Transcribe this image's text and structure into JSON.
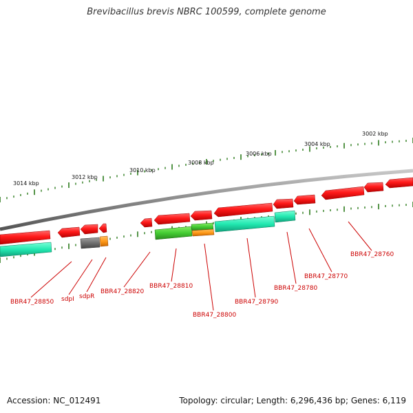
{
  "title": "Brevibacillus brevis NBRC 100599, complete genome",
  "footer": {
    "accession": "Accession: NC_012491",
    "summary": "Topology: circular; Length: 6,296,436 bp; Genes: 6,119"
  },
  "colors": {
    "backbone": "#8a8a8a",
    "tick": "#2a7a1a",
    "gene_red": "#ff1a1a",
    "gene_cyan": "#22e8b0",
    "gene_green": "#44cc33",
    "gene_orange": "#ff9a1a",
    "gene_gray": "#707070",
    "label": "#cc0000"
  },
  "kbp_labels": [
    "3014 kbp",
    "3012 kbp",
    "3010 kbp",
    "3008 kbp",
    "3006 kbp",
    "3004 kbp",
    "3002 kbp"
  ],
  "gene_labels": [
    "BBR47_28850",
    "sdpI",
    "sdpR",
    "BBR47_28820",
    "BBR47_28810",
    "BBR47_28800",
    "BBR47_28790",
    "BBR47_28780",
    "BBR47_28770",
    "BBR47_28760"
  ]
}
